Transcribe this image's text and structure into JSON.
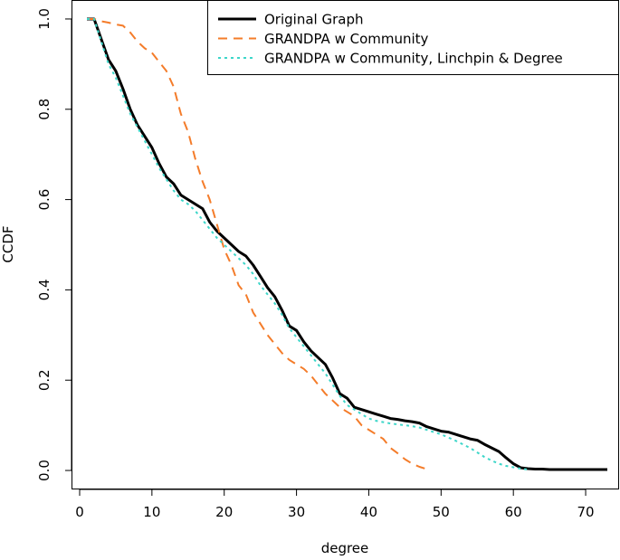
{
  "chart_data": {
    "type": "line",
    "title": "",
    "xlabel": "degree",
    "ylabel": "CCDF",
    "xlim": [
      -1,
      74.5
    ],
    "ylim": [
      -0.04,
      1.04
    ],
    "xticks": [
      0,
      10,
      20,
      30,
      40,
      50,
      60,
      70
    ],
    "yticks": [
      0.0,
      0.2,
      0.4,
      0.6,
      0.8,
      1.0
    ],
    "xtick_labels": [
      "0",
      "10",
      "20",
      "30",
      "40",
      "50",
      "60",
      "70"
    ],
    "ytick_labels": [
      "0.0",
      "0.2",
      "0.4",
      "0.6",
      "0.8",
      "1.0"
    ],
    "grid": false,
    "legend_position": "top-right",
    "series": [
      {
        "name": "Original Graph",
        "color": "#000000",
        "style": "solid",
        "x": [
          1,
          2,
          3,
          4,
          5,
          6,
          7,
          8,
          9,
          10,
          11,
          12,
          13,
          14,
          15,
          16,
          17,
          18,
          19,
          20,
          21,
          22,
          23,
          24,
          25,
          26,
          27,
          28,
          29,
          30,
          31,
          32,
          33,
          34,
          35,
          36,
          37,
          38,
          39,
          40,
          41,
          42,
          43,
          44,
          45,
          46,
          47,
          48,
          49,
          50,
          51,
          52,
          53,
          54,
          55,
          56,
          57,
          58,
          59,
          60,
          61,
          62,
          63,
          64,
          65,
          66,
          67,
          68,
          69,
          70,
          71,
          72,
          73
        ],
        "values": [
          1.0,
          1.0,
          0.955,
          0.91,
          0.885,
          0.845,
          0.8,
          0.765,
          0.74,
          0.715,
          0.68,
          0.65,
          0.635,
          0.61,
          0.6,
          0.59,
          0.58,
          0.55,
          0.53,
          0.515,
          0.5,
          0.485,
          0.475,
          0.455,
          0.43,
          0.405,
          0.385,
          0.355,
          0.32,
          0.31,
          0.285,
          0.265,
          0.25,
          0.235,
          0.205,
          0.17,
          0.16,
          0.14,
          0.135,
          0.13,
          0.125,
          0.12,
          0.115,
          0.113,
          0.11,
          0.108,
          0.105,
          0.097,
          0.092,
          0.087,
          0.085,
          0.08,
          0.075,
          0.07,
          0.067,
          0.058,
          0.05,
          0.042,
          0.028,
          0.015,
          0.006,
          0.004,
          0.003,
          0.003,
          0.002,
          0.002,
          0.002,
          0.002,
          0.002,
          0.002,
          0.002,
          0.002,
          0.002
        ]
      },
      {
        "name": "GRANDPA w Community",
        "color": "#f47c2a",
        "style": "dashed",
        "x": [
          1,
          2,
          3,
          4,
          5,
          6,
          7,
          8,
          9,
          10,
          11,
          12,
          13,
          14,
          15,
          16,
          17,
          18,
          19,
          20,
          21,
          22,
          23,
          24,
          25,
          26,
          27,
          28,
          29,
          30,
          31,
          32,
          33,
          34,
          35,
          36,
          37,
          38,
          39,
          40,
          41,
          42,
          43,
          44,
          45,
          46,
          47,
          48
        ],
        "values": [
          1.0,
          1.0,
          0.995,
          0.992,
          0.988,
          0.985,
          0.97,
          0.95,
          0.935,
          0.925,
          0.905,
          0.885,
          0.85,
          0.79,
          0.75,
          0.69,
          0.64,
          0.6,
          0.545,
          0.49,
          0.455,
          0.41,
          0.39,
          0.35,
          0.325,
          0.3,
          0.28,
          0.26,
          0.245,
          0.235,
          0.225,
          0.21,
          0.19,
          0.17,
          0.155,
          0.14,
          0.13,
          0.12,
          0.1,
          0.09,
          0.08,
          0.07,
          0.05,
          0.038,
          0.025,
          0.015,
          0.008,
          0.003
        ]
      },
      {
        "name": "GRANDPA w Community, Linchpin & Degree",
        "color": "#3dd6c9",
        "style": "dotted",
        "x": [
          1,
          2,
          3,
          4,
          5,
          6,
          7,
          8,
          9,
          10,
          11,
          12,
          13,
          14,
          15,
          16,
          17,
          18,
          19,
          20,
          21,
          22,
          23,
          24,
          25,
          26,
          27,
          28,
          29,
          30,
          31,
          32,
          33,
          34,
          35,
          36,
          37,
          38,
          39,
          40,
          41,
          42,
          43,
          44,
          45,
          46,
          47,
          48,
          49,
          50,
          51,
          52,
          53,
          54,
          55,
          56,
          57,
          58,
          59,
          60,
          61,
          62
        ],
        "values": [
          1.0,
          1.0,
          0.95,
          0.9,
          0.87,
          0.83,
          0.79,
          0.76,
          0.73,
          0.7,
          0.67,
          0.645,
          0.62,
          0.6,
          0.59,
          0.575,
          0.555,
          0.535,
          0.515,
          0.5,
          0.485,
          0.47,
          0.455,
          0.435,
          0.41,
          0.39,
          0.37,
          0.345,
          0.315,
          0.295,
          0.275,
          0.255,
          0.235,
          0.215,
          0.19,
          0.165,
          0.145,
          0.135,
          0.125,
          0.115,
          0.11,
          0.107,
          0.104,
          0.102,
          0.1,
          0.098,
          0.095,
          0.09,
          0.085,
          0.08,
          0.073,
          0.066,
          0.058,
          0.05,
          0.04,
          0.03,
          0.022,
          0.015,
          0.01,
          0.007,
          0.004,
          0.002
        ]
      }
    ]
  }
}
